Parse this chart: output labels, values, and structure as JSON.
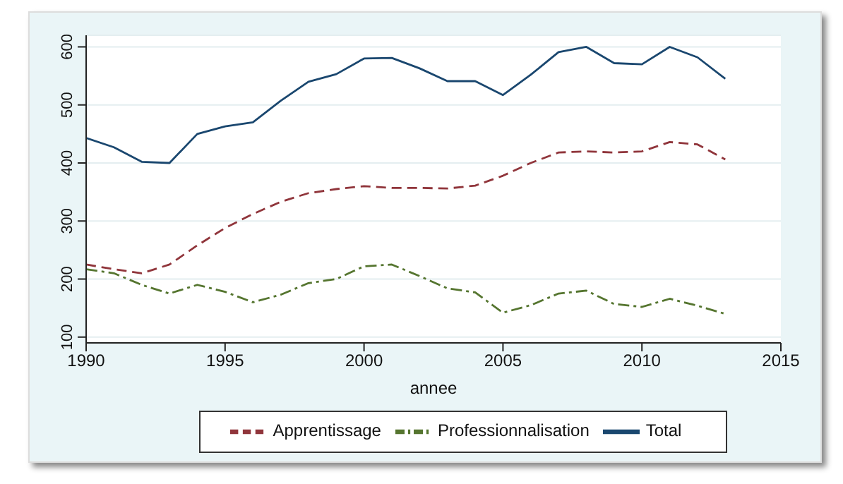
{
  "chart_data": {
    "type": "line",
    "xlabel": "annee",
    "x": [
      1990,
      1991,
      1992,
      1993,
      1994,
      1995,
      1996,
      1997,
      1998,
      1999,
      2000,
      2001,
      2002,
      2003,
      2004,
      2005,
      2006,
      2007,
      2008,
      2009,
      2010,
      2011,
      2012,
      2013
    ],
    "series": [
      {
        "name": "Total",
        "color": "#1a476f",
        "line_style": "solid",
        "values": [
          443,
          427,
          402,
          400,
          450,
          463,
          470,
          507,
          540,
          553,
          580,
          581,
          563,
          541,
          541,
          517,
          552,
          591,
          600,
          572,
          570,
          600,
          582,
          545
        ]
      },
      {
        "name": "Apprentissage",
        "color": "#90353b",
        "line_style": "dashed",
        "values": [
          225,
          217,
          210,
          225,
          258,
          288,
          312,
          333,
          348,
          355,
          360,
          357,
          357,
          356,
          361,
          378,
          400,
          418,
          420,
          418,
          420,
          436,
          432,
          406
        ]
      },
      {
        "name": "Professionnalisation",
        "color": "#55752f",
        "line_style": "dashdot",
        "values": [
          217,
          210,
          190,
          175,
          190,
          178,
          160,
          173,
          193,
          200,
          222,
          225,
          205,
          184,
          177,
          142,
          155,
          175,
          180,
          157,
          152,
          166,
          154,
          140
        ]
      }
    ],
    "xlim": [
      1990,
      2015
    ],
    "xticks": [
      1990,
      1995,
      2000,
      2005,
      2010,
      2015
    ],
    "ylim": [
      90,
      620
    ],
    "yticks": [
      100,
      200,
      300,
      400,
      500,
      600
    ],
    "grid": "y",
    "legend": "bottom",
    "marker": "none"
  }
}
